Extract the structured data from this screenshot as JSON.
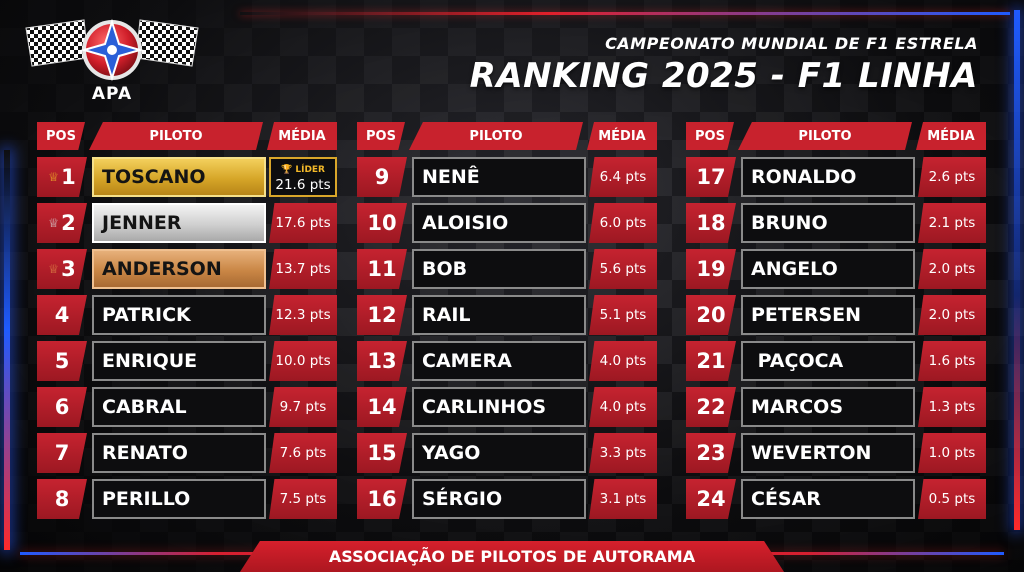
{
  "logo": {
    "text": "APA"
  },
  "header": {
    "subtitle": "CAMPEONATO MUNDIAL DE F1 ESTRELA",
    "title": "RANKING 2025 - F1 LINHA"
  },
  "columns_header": {
    "pos": "POS",
    "piloto": "PILOTO",
    "media": "MÉDIA"
  },
  "leader_badge": "LÍDER",
  "podium_colors": {
    "gold": "#d6a628",
    "silver": "#cfcfcf",
    "bronze": "#c98645"
  },
  "accent_color": "#c8222d",
  "ranking": [
    {
      "pos": "1",
      "name": "TOSCANO",
      "avg": "21.6 pts"
    },
    {
      "pos": "2",
      "name": "JENNER",
      "avg": "17.6 pts"
    },
    {
      "pos": "3",
      "name": "ANDERSON",
      "avg": "13.7 pts"
    },
    {
      "pos": "4",
      "name": "PATRICK",
      "avg": "12.3 pts"
    },
    {
      "pos": "5",
      "name": "ENRIQUE",
      "avg": "10.0 pts"
    },
    {
      "pos": "6",
      "name": "CABRAL",
      "avg": "9.7 pts"
    },
    {
      "pos": "7",
      "name": "RENATO",
      "avg": "7.6 pts"
    },
    {
      "pos": "8",
      "name": "PERILLO",
      "avg": "7.5 pts"
    },
    {
      "pos": "9",
      "name": "NENÊ",
      "avg": "6.4 pts"
    },
    {
      "pos": "10",
      "name": "ALOISIO",
      "avg": "6.0 pts"
    },
    {
      "pos": "11",
      "name": "BOB",
      "avg": "5.6 pts"
    },
    {
      "pos": "12",
      "name": "RAIL",
      "avg": "5.1 pts"
    },
    {
      "pos": "13",
      "name": "CAMERA",
      "avg": "4.0 pts"
    },
    {
      "pos": "14",
      "name": "CARLINHOS",
      "avg": "4.0 pts"
    },
    {
      "pos": "15",
      "name": "YAGO",
      "avg": "3.3 pts"
    },
    {
      "pos": "16",
      "name": "SÉRGIO",
      "avg": "3.1 pts"
    },
    {
      "pos": "17",
      "name": "RONALDO",
      "avg": "2.6 pts"
    },
    {
      "pos": "18",
      "name": "BRUNO",
      "avg": "2.1 pts"
    },
    {
      "pos": "19",
      "name": "ANGELO",
      "avg": "2.0 pts"
    },
    {
      "pos": "20",
      "name": "PETERSEN",
      "avg": "2.0 pts"
    },
    {
      "pos": "21",
      "name": " PAÇOCA",
      "avg": "1.6 pts"
    },
    {
      "pos": "22",
      "name": "MARCOS",
      "avg": "1.3 pts"
    },
    {
      "pos": "23",
      "name": "WEVERTON",
      "avg": "1.0 pts"
    },
    {
      "pos": "24",
      "name": "CÉSAR",
      "avg": "0.5 pts"
    }
  ],
  "footer": {
    "text": "ASSOCIAÇÃO DE PILOTOS DE AUTORAMA"
  }
}
